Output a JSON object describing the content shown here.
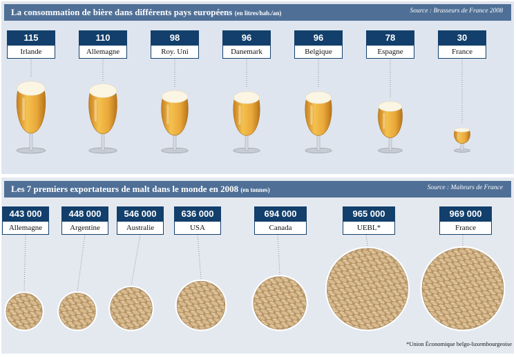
{
  "chart_data": [
    {
      "type": "bar",
      "title": "La consommation de bière dans différents pays européens",
      "unit": "(en litres/hab./an)",
      "source": "Source : Brasseurs de France 2008",
      "categories": [
        "Irlande",
        "Allemagne",
        "Roy. Uni",
        "Danemark",
        "Belgique",
        "Espagne",
        "France"
      ],
      "values": [
        115,
        110,
        98,
        96,
        96,
        78,
        30
      ],
      "value_labels": [
        "115",
        "110",
        "98",
        "96",
        "96",
        "78",
        "30"
      ],
      "colors": {
        "beer": "#e9a83a",
        "foam": "#fbf5e3",
        "glass": "#cfd5dc"
      }
    },
    {
      "type": "bar",
      "title": "Les 7 premiers exportateurs de malt dans le monde en 2008",
      "unit": "(en tonnes)",
      "source": "Source : Malteurs de France",
      "categories": [
        "Allemagne",
        "Argentine",
        "Australie",
        "USA",
        "Canada",
        "UEBL*",
        "France"
      ],
      "values": [
        443000,
        448000,
        546000,
        636000,
        694000,
        965000,
        969000
      ],
      "value_labels": [
        "443 000",
        "448 000",
        "546 000",
        "636 000",
        "694 000",
        "965 000",
        "969 000"
      ],
      "footnote": "*Union Économique belgo-luxembourgeoise",
      "colors": {
        "grain": "#d8b98c",
        "grain_dark": "#a8875a"
      }
    }
  ],
  "colors": {
    "banner": "#4f6f96",
    "label": "#123f6b",
    "panel": "#dfe5ee"
  }
}
